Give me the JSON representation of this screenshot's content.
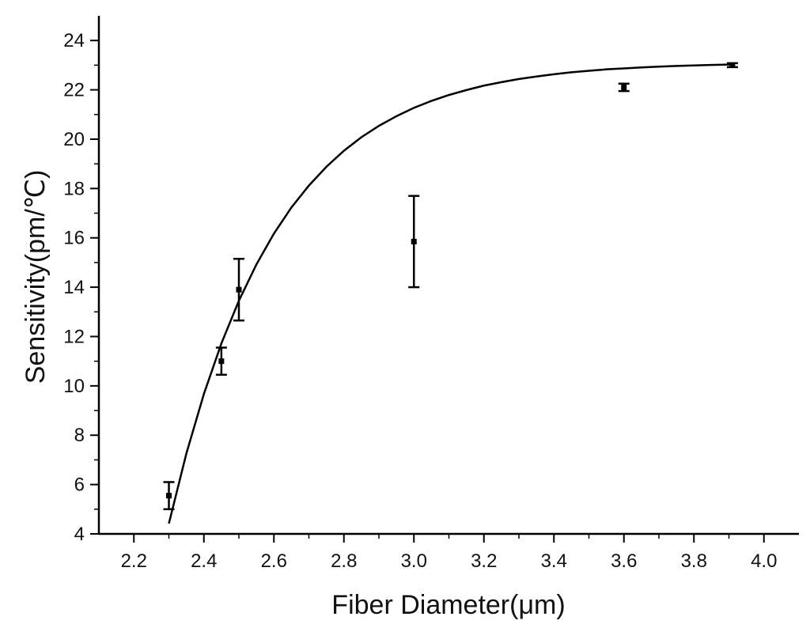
{
  "chart_data": {
    "type": "scatter",
    "xlabel": "Fiber Diameter(μm)",
    "ylabel": "Sensitivity(pm/℃)",
    "xlim": [
      2.1,
      4.1
    ],
    "ylim": [
      4,
      25
    ],
    "x_ticks": [
      2.2,
      2.4,
      2.6,
      2.8,
      3.0,
      3.2,
      3.4,
      3.6,
      3.8,
      4.0
    ],
    "x_tick_labels": [
      "2.2",
      "2.4",
      "2.6",
      "2.8",
      "3.0",
      "3.2",
      "3.4",
      "3.6",
      "3.8",
      "4.0"
    ],
    "y_ticks": [
      4,
      6,
      8,
      10,
      12,
      14,
      16,
      18,
      20,
      22,
      24
    ],
    "y_tick_labels": [
      "4",
      "6",
      "8",
      "10",
      "12",
      "14",
      "16",
      "18",
      "20",
      "22",
      "24"
    ],
    "grid": false,
    "points": [
      {
        "x": 2.3,
        "y": 5.55,
        "error": 0.55
      },
      {
        "x": 2.45,
        "y": 11.0,
        "error": 0.55
      },
      {
        "x": 2.5,
        "y": 13.9,
        "error": 1.25
      },
      {
        "x": 3.0,
        "y": 15.85,
        "error": 1.85
      },
      {
        "x": 3.6,
        "y": 22.1,
        "error": 0.15
      },
      {
        "x": 3.91,
        "y": 23.0,
        "error": 0.08
      }
    ],
    "fit_curve": {
      "x": [
        2.3,
        2.35,
        2.4,
        2.45,
        2.5,
        2.55,
        2.6,
        2.65,
        2.7,
        2.75,
        2.8,
        2.85,
        2.9,
        2.95,
        3.0,
        3.05,
        3.1,
        3.15,
        3.2,
        3.25,
        3.3,
        3.35,
        3.4,
        3.45,
        3.5,
        3.55,
        3.6,
        3.65,
        3.7,
        3.75,
        3.8,
        3.85,
        3.91
      ],
      "y": [
        4.42,
        7.26,
        9.67,
        11.72,
        13.45,
        14.92,
        16.17,
        17.23,
        18.12,
        18.88,
        19.53,
        20.08,
        20.54,
        20.93,
        21.27,
        21.55,
        21.79,
        21.99,
        22.17,
        22.31,
        22.44,
        22.54,
        22.63,
        22.71,
        22.77,
        22.83,
        22.87,
        22.91,
        22.94,
        22.97,
        22.99,
        23.01,
        23.03
      ]
    }
  }
}
